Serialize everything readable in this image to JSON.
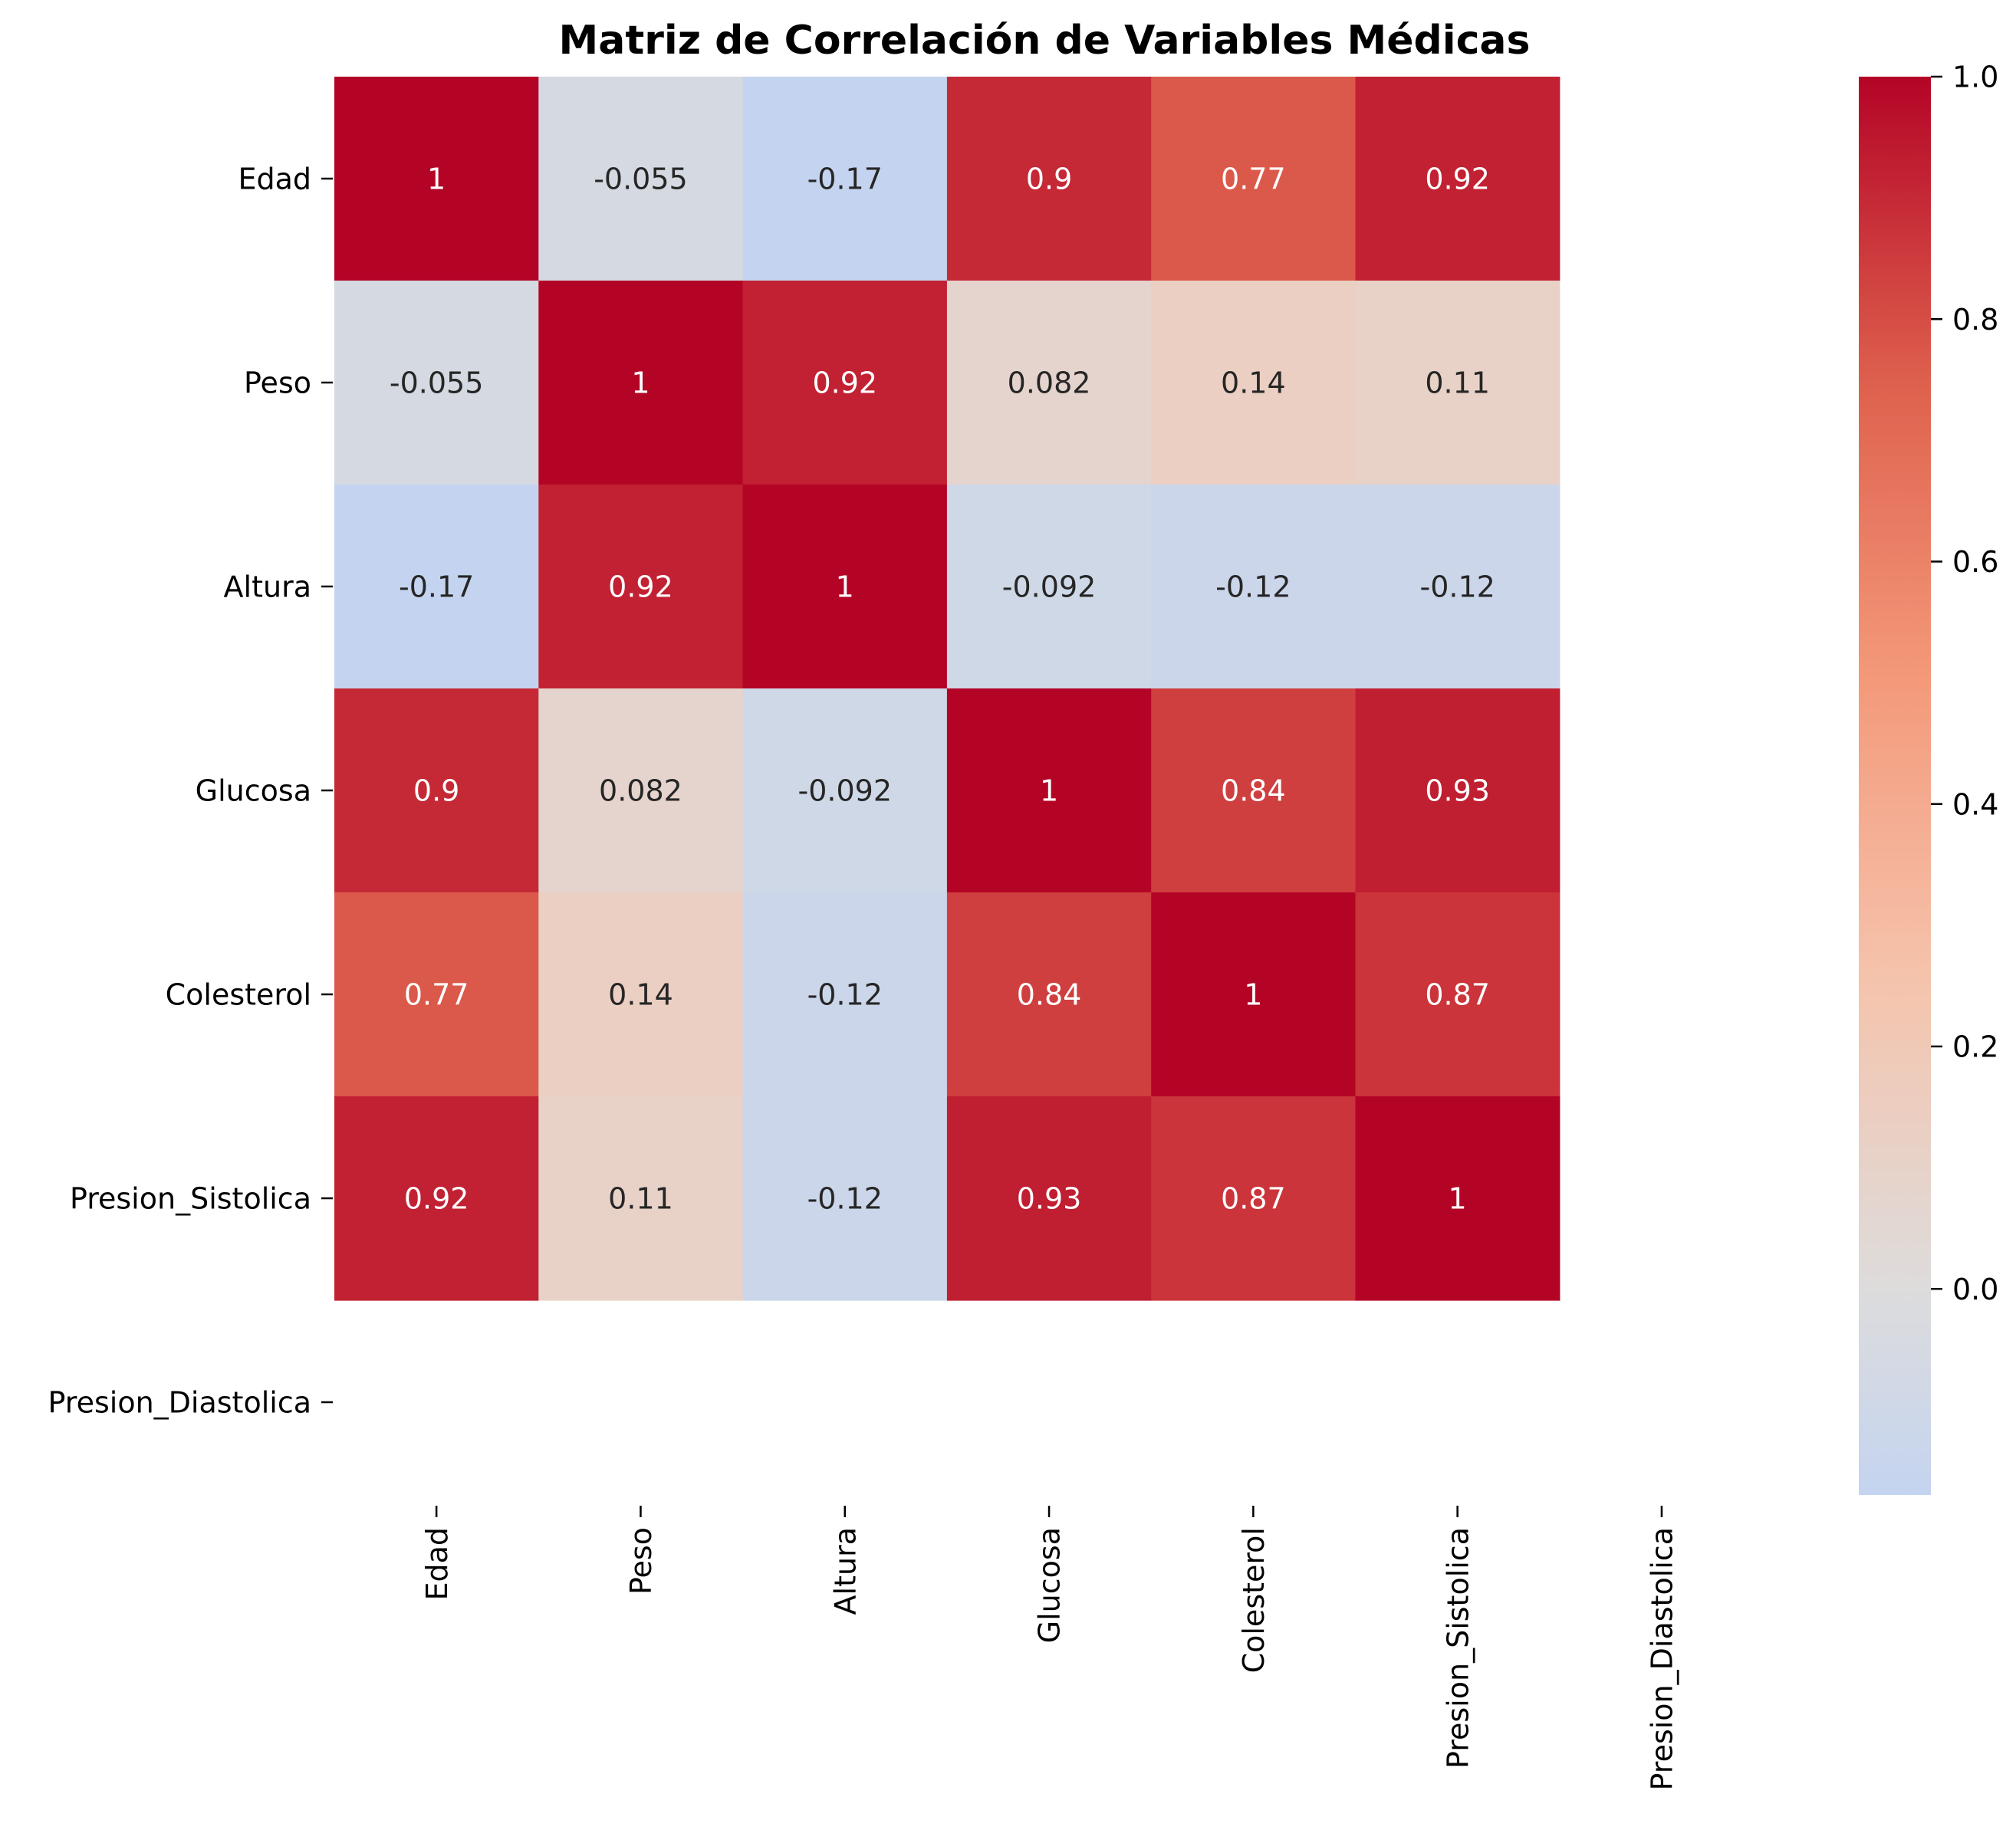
{
  "chart_data": {
    "type": "heatmap",
    "title": "Matriz de Correlación de Variables Médicas",
    "xlabel": "",
    "ylabel": "",
    "rows": [
      "Edad",
      "Peso",
      "Altura",
      "Glucosa",
      "Colesterol",
      "Presion_Sistolica",
      "Presion_Diastolica"
    ],
    "columns": [
      "Edad",
      "Peso",
      "Altura",
      "Glucosa",
      "Colesterol",
      "Presion_Sistolica",
      "Presion_Diastolica"
    ],
    "values": [
      [
        1,
        -0.055,
        -0.17,
        0.9,
        0.77,
        0.92,
        null
      ],
      [
        -0.055,
        1,
        0.92,
        0.082,
        0.14,
        0.11,
        null
      ],
      [
        -0.17,
        0.92,
        1,
        -0.092,
        -0.12,
        -0.12,
        null
      ],
      [
        0.9,
        0.082,
        -0.092,
        1,
        0.84,
        0.93,
        null
      ],
      [
        0.77,
        0.14,
        -0.12,
        0.84,
        1,
        0.87,
        null
      ],
      [
        0.92,
        0.11,
        -0.12,
        0.93,
        0.87,
        1,
        null
      ],
      [
        null,
        null,
        null,
        null,
        null,
        null,
        null
      ]
    ],
    "annotations": [
      [
        "1",
        "-0.055",
        "-0.17",
        "0.9",
        "0.77",
        "0.92",
        ""
      ],
      [
        "-0.055",
        "1",
        "0.92",
        "0.082",
        "0.14",
        "0.11",
        ""
      ],
      [
        "-0.17",
        "0.92",
        "1",
        "-0.092",
        "-0.12",
        "-0.12",
        ""
      ],
      [
        "0.9",
        "0.082",
        "-0.092",
        "1",
        "0.84",
        "0.93",
        ""
      ],
      [
        "0.77",
        "0.14",
        "-0.12",
        "0.84",
        "1",
        "0.87",
        ""
      ],
      [
        "0.92",
        "0.11",
        "-0.12",
        "0.93",
        "0.87",
        "1",
        ""
      ],
      [
        "",
        "",
        "",
        "",
        "",
        "",
        ""
      ]
    ],
    "colormap": "coolwarm",
    "colorbar": {
      "min": -0.17,
      "max": 1.0,
      "ticks": [
        0.0,
        0.2,
        0.4,
        0.6,
        0.8,
        1.0
      ],
      "tick_labels": [
        "0.0",
        "0.2",
        "0.4",
        "0.6",
        "0.8",
        "1.0"
      ]
    },
    "legend": "colorbar-right"
  }
}
